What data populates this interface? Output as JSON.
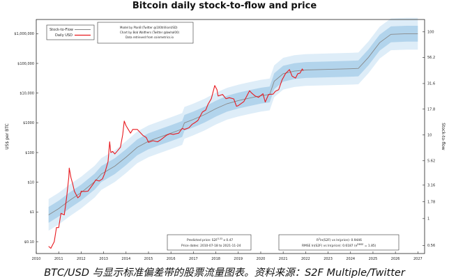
{
  "chart_data": {
    "type": "line",
    "title": "Bitcoin daily stock-to-flow and price",
    "xlabel": "",
    "ylabel": "US$ per BTC",
    "ylabel_right": "Stock-to-flow",
    "y_scale": "log",
    "ylim": [
      0.04,
      3000000
    ],
    "xlim": [
      2010,
      2027.3
    ],
    "grid": false,
    "x_ticks": [
      "2010",
      "2011",
      "2012",
      "2013",
      "2014",
      "2015",
      "2016",
      "2017",
      "2018",
      "2019",
      "2020",
      "2021",
      "2022",
      "2023",
      "2024",
      "2025",
      "2026",
      "2027"
    ],
    "y_ticks": [
      {
        "value": 0.1,
        "label": "$0.10"
      },
      {
        "value": 1,
        "label": "$1"
      },
      {
        "value": 10,
        "label": "$10"
      },
      {
        "value": 100,
        "label": "$100"
      },
      {
        "value": 1000,
        "label": "$1000"
      },
      {
        "value": 10000,
        "label": "$10,000"
      },
      {
        "value": 100000,
        "label": "$100,000"
      },
      {
        "value": 1000000,
        "label": "$1,000,000"
      }
    ],
    "y2_ticks": [
      {
        "price": 0.075,
        "label": "0.56"
      },
      {
        "price": 0.6,
        "label": "1"
      },
      {
        "price": 2.2,
        "label": "1.78"
      },
      {
        "price": 8.0,
        "label": "3.16"
      },
      {
        "price": 53,
        "label": "5.62"
      },
      {
        "price": 390,
        "label": "10"
      },
      {
        "price": 2900,
        "label": "17.8"
      },
      {
        "price": 21000,
        "label": "31.6"
      },
      {
        "price": 160000,
        "label": "56.2"
      },
      {
        "price": 1150000,
        "label": "100"
      }
    ],
    "legend": {
      "placement": "top-left",
      "entries": [
        {
          "name": "Stock-to-Flow",
          "color": "#888888"
        },
        {
          "name": "Daily USD",
          "color": "#e8191f"
        }
      ]
    },
    "credits": [
      "Model by PlanB (Twitter @100trillionUSD)",
      "Chart by Bob Walthers (Twitter @bwhal00)",
      "Data retrieved from coinmetrics.io"
    ],
    "annotation_left": {
      "line1_main": "Predicted price: S2F",
      "line1_sup": "3.33",
      "line1_tail": " x 0.47",
      "line2": "Price dates: 2010-07-18 to 2021-11-24"
    },
    "annotation_right": {
      "line1_main": "R",
      "line1_sup": "2",
      "line1_tail": "ln(S2F) vs ln(price): 0.9446",
      "line2_main": "RMSE ln(S2F) vs ln(price): 0.6187 (e",
      "line2_sup": "RMSE",
      "line2_tail": " = 1.85)"
    },
    "colors": {
      "price": "#e8191f",
      "s2f": "#888888",
      "band_inner": "#b2d4ec",
      "band_outer": "#deedf8"
    },
    "series": [
      {
        "name": "Stock-to-Flow",
        "points": [
          [
            2010.55,
            0.8
          ],
          [
            2011.0,
            1.3
          ],
          [
            2011.5,
            2.5
          ],
          [
            2012.0,
            4.5
          ],
          [
            2012.6,
            10.5
          ],
          [
            2012.9,
            19
          ],
          [
            2013.5,
            35
          ],
          [
            2014.0,
            70
          ],
          [
            2014.5,
            150
          ],
          [
            2015.0,
            240
          ],
          [
            2015.5,
            330
          ],
          [
            2016.0,
            450
          ],
          [
            2016.5,
            620
          ],
          [
            2016.6,
            1000
          ],
          [
            2017.0,
            1300
          ],
          [
            2017.5,
            1900
          ],
          [
            2018.0,
            3000
          ],
          [
            2018.5,
            4400
          ],
          [
            2019.0,
            5600
          ],
          [
            2019.5,
            6800
          ],
          [
            2020.0,
            8200
          ],
          [
            2020.4,
            9000
          ],
          [
            2020.6,
            25000
          ],
          [
            2021.0,
            45000
          ],
          [
            2021.5,
            55000
          ],
          [
            2022.0,
            60000
          ],
          [
            2023.0,
            63000
          ],
          [
            2024.0,
            66000
          ],
          [
            2024.35,
            68000
          ],
          [
            2024.8,
            160000
          ],
          [
            2025.3,
            500000
          ],
          [
            2025.8,
            950000
          ],
          [
            2026.5,
            1000000
          ],
          [
            2027.0,
            1000000
          ]
        ]
      },
      {
        "name": "Daily USD",
        "points": [
          [
            2010.55,
            0.07
          ],
          [
            2010.65,
            0.06
          ],
          [
            2010.8,
            0.1
          ],
          [
            2010.9,
            0.3
          ],
          [
            2011.0,
            0.3
          ],
          [
            2011.1,
            0.9
          ],
          [
            2011.25,
            0.8
          ],
          [
            2011.35,
            3
          ],
          [
            2011.45,
            15
          ],
          [
            2011.47,
            30
          ],
          [
            2011.55,
            14
          ],
          [
            2011.62,
            9
          ],
          [
            2011.7,
            5
          ],
          [
            2011.85,
            3
          ],
          [
            2011.95,
            3.5
          ],
          [
            2012.0,
            5
          ],
          [
            2012.15,
            4.9
          ],
          [
            2012.3,
            5
          ],
          [
            2012.55,
            9
          ],
          [
            2012.65,
            12
          ],
          [
            2012.8,
            11
          ],
          [
            2012.95,
            13
          ],
          [
            2013.05,
            20
          ],
          [
            2013.2,
            50
          ],
          [
            2013.27,
            230
          ],
          [
            2013.32,
            100
          ],
          [
            2013.4,
            110
          ],
          [
            2013.5,
            90
          ],
          [
            2013.6,
            110
          ],
          [
            2013.75,
            150
          ],
          [
            2013.85,
            400
          ],
          [
            2013.92,
            1150
          ],
          [
            2014.0,
            800
          ],
          [
            2014.1,
            600
          ],
          [
            2014.2,
            450
          ],
          [
            2014.3,
            600
          ],
          [
            2014.5,
            600
          ],
          [
            2014.6,
            500
          ],
          [
            2014.75,
            380
          ],
          [
            2014.9,
            320
          ],
          [
            2015.0,
            220
          ],
          [
            2015.2,
            250
          ],
          [
            2015.4,
            230
          ],
          [
            2015.55,
            270
          ],
          [
            2015.8,
            380
          ],
          [
            2015.95,
            430
          ],
          [
            2016.1,
            410
          ],
          [
            2016.35,
            450
          ],
          [
            2016.5,
            650
          ],
          [
            2016.6,
            600
          ],
          [
            2016.8,
            680
          ],
          [
            2016.95,
            900
          ],
          [
            2017.05,
            1000
          ],
          [
            2017.2,
            1200
          ],
          [
            2017.4,
            2300
          ],
          [
            2017.55,
            2700
          ],
          [
            2017.65,
            4200
          ],
          [
            2017.8,
            6500
          ],
          [
            2017.95,
            18000
          ],
          [
            2018.05,
            13000
          ],
          [
            2018.1,
            8000
          ],
          [
            2018.3,
            9000
          ],
          [
            2018.45,
            6500
          ],
          [
            2018.6,
            7000
          ],
          [
            2018.8,
            6400
          ],
          [
            2018.92,
            3600
          ],
          [
            2019.0,
            3800
          ],
          [
            2019.25,
            5200
          ],
          [
            2019.4,
            8500
          ],
          [
            2019.5,
            12000
          ],
          [
            2019.6,
            10000
          ],
          [
            2019.75,
            8000
          ],
          [
            2019.9,
            7200
          ],
          [
            2020.1,
            9500
          ],
          [
            2020.2,
            5000
          ],
          [
            2020.35,
            9000
          ],
          [
            2020.55,
            9200
          ],
          [
            2020.65,
            11500
          ],
          [
            2020.8,
            13000
          ],
          [
            2020.95,
            28000
          ],
          [
            2021.1,
            45000
          ],
          [
            2021.28,
            62000
          ],
          [
            2021.4,
            37000
          ],
          [
            2021.55,
            32000
          ],
          [
            2021.65,
            45000
          ],
          [
            2021.75,
            47000
          ],
          [
            2021.85,
            65000
          ],
          [
            2021.9,
            57000
          ]
        ]
      }
    ]
  },
  "caption": "BTC/USD 与显示标准偏差带的股票流量图表。资料来源：S2F Multiple/Twitter"
}
